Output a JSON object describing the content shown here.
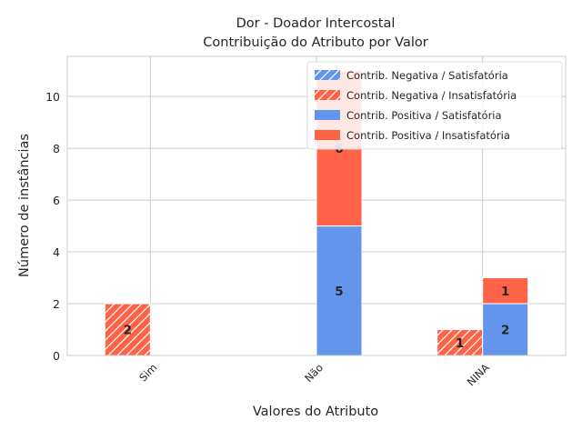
{
  "chart_data": {
    "type": "bar",
    "title_line1": "Dor - Doador Intercostal",
    "title_line2": "Contribuição do Atributo por Valor",
    "xlabel": "Valores do Atributo",
    "ylabel": "Número de instâncias",
    "categories": [
      "Sim",
      "Não",
      "NINA"
    ],
    "ylim": [
      0,
      11.55
    ],
    "yticks": [
      0,
      2,
      4,
      6,
      8,
      10
    ],
    "grid": true,
    "legend_position": "top-right",
    "colors": {
      "satisfatoria": "#6495ED",
      "insatisfatoria": "#FF6347",
      "hatch": "#ffffff",
      "grid": "#cccccc",
      "text": "#262626"
    },
    "series": [
      {
        "name": "Contrib. Negativa / Satisfatória",
        "group": "negativa",
        "color_key": "satisfatoria",
        "hatched": true,
        "values": [
          0,
          0,
          0
        ]
      },
      {
        "name": "Contrib. Negativa / Insatisfatória",
        "group": "negativa",
        "color_key": "insatisfatoria",
        "hatched": true,
        "values": [
          2,
          0,
          1
        ]
      },
      {
        "name": "Contrib. Positiva / Satisfatória",
        "group": "positiva",
        "color_key": "satisfatoria",
        "hatched": false,
        "values": [
          0,
          5,
          2
        ]
      },
      {
        "name": "Contrib. Positiva / Insatisfatória",
        "group": "positiva",
        "color_key": "insatisfatoria",
        "hatched": false,
        "values": [
          0,
          6,
          1
        ]
      }
    ]
  }
}
